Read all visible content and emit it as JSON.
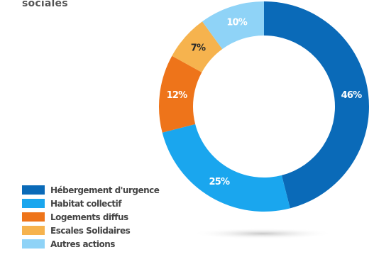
{
  "heading": "sociales",
  "chart_data": {
    "type": "pie",
    "donut": true,
    "title": "",
    "categories": [
      "Hébergement d'urgence",
      "Habitat collectif",
      "Logements diffus",
      "Escales Solidaires",
      "Autres actions"
    ],
    "values": [
      46,
      25,
      12,
      7,
      10
    ],
    "labels": [
      "46%",
      "25%",
      "12%",
      "7%",
      "10%"
    ],
    "colors": [
      "#0a6ab8",
      "#1aa6ee",
      "#ee741a",
      "#f6b34e",
      "#8fd3f7"
    ],
    "legend_position": "bottom-left"
  }
}
